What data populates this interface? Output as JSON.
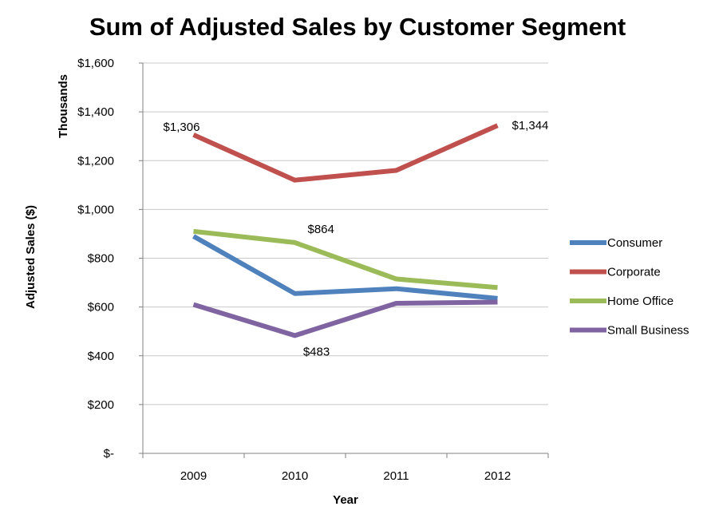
{
  "chart_data": {
    "type": "line",
    "title": "Sum of Adjusted Sales by Customer Segment",
    "xlabel": "Year",
    "ylabel": "Adjusted Sales ($)",
    "yunit_label": "Thousands",
    "categories": [
      "2009",
      "2010",
      "2011",
      "2012"
    ],
    "ylim": [
      0,
      1600
    ],
    "yticks": [
      0,
      200,
      400,
      600,
      800,
      1000,
      1200,
      1400,
      1600
    ],
    "ytick_labels": [
      "$-",
      "$200",
      "$400",
      "$600",
      "$800",
      "$1,000",
      "$1,200",
      "$1,400",
      "$1,600"
    ],
    "grid": true,
    "legend_position": "right",
    "series": [
      {
        "name": "Consumer",
        "color": "#4f81bd",
        "values": [
          890,
          655,
          675,
          635
        ]
      },
      {
        "name": "Corporate",
        "color": "#c0504d",
        "values": [
          1306,
          1120,
          1160,
          1344
        ]
      },
      {
        "name": "Home Office",
        "color": "#9bbb59",
        "values": [
          910,
          864,
          715,
          680
        ]
      },
      {
        "name": "Small Business",
        "color": "#8064a2",
        "values": [
          610,
          483,
          615,
          620
        ]
      }
    ],
    "annotations": [
      {
        "series": "Corporate",
        "index": 0,
        "text": "$1,306"
      },
      {
        "series": "Corporate",
        "index": 3,
        "text": "$1,344"
      },
      {
        "series": "Home Office",
        "index": 1,
        "text": "$864"
      },
      {
        "series": "Small Business",
        "index": 1,
        "text": "$483"
      }
    ]
  }
}
